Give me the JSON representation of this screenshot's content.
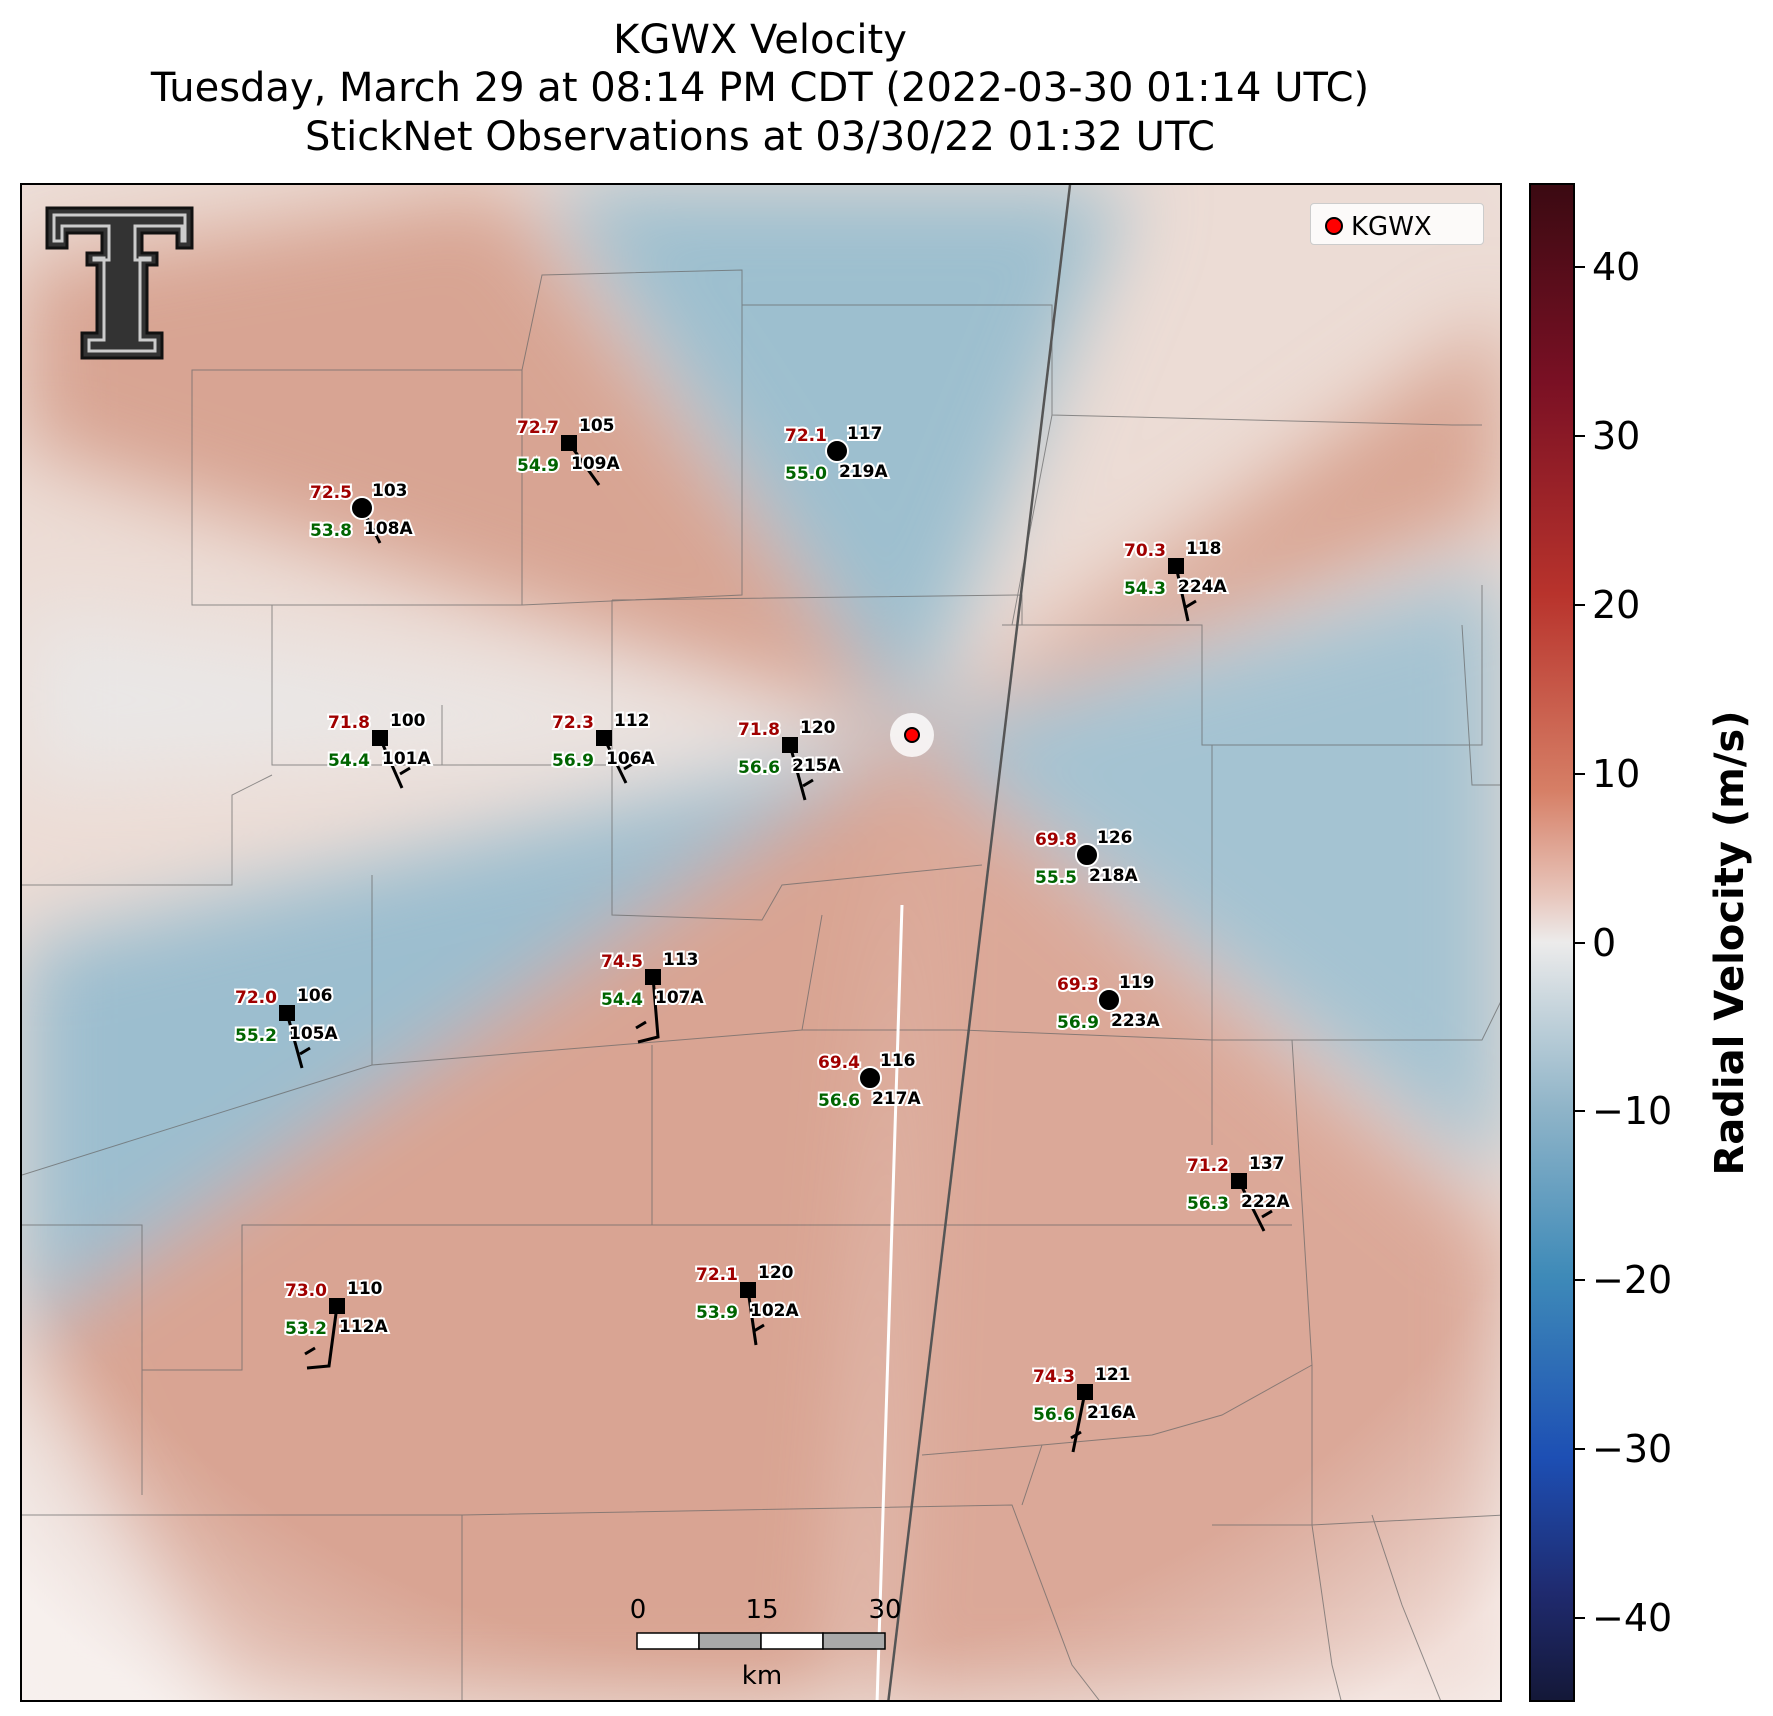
{
  "title": {
    "line1": "KGWX Velocity",
    "line2": "Tuesday, March 29 at 08:14 PM CDT (2022-03-30 01:14 UTC)",
    "line3": "StickNet Observations at 03/30/22 01:32 UTC"
  },
  "legend": {
    "label": "KGWX",
    "marker_color": "#ff0000"
  },
  "colorbar": {
    "label": "Radial Velocity (m/s)",
    "ticks": [
      "40",
      "30",
      "20",
      "10",
      "0",
      "−10",
      "−20",
      "−30",
      "−40"
    ],
    "range": [
      -45,
      45
    ]
  },
  "scale_bar": {
    "ticks": [
      "0",
      "15",
      "30"
    ],
    "unit": "km"
  },
  "colors": {
    "outbound": "#d9a08f",
    "inbound": "#9fbfce",
    "neutral": "#ecebeb",
    "temperature": "#a00000",
    "dewpoint": "#006400"
  },
  "stations": [
    {
      "id": "108A",
      "num": "103",
      "temp": "72.5",
      "dew": "53.8",
      "marker": "circle"
    },
    {
      "id": "109A",
      "num": "105",
      "temp": "72.7",
      "dew": "54.9",
      "marker": "square"
    },
    {
      "id": "219A",
      "num": "117",
      "temp": "72.1",
      "dew": "55.0",
      "marker": "circle"
    },
    {
      "id": "224A",
      "num": "118",
      "temp": "70.3",
      "dew": "54.3",
      "marker": "square"
    },
    {
      "id": "101A",
      "num": "100",
      "temp": "71.8",
      "dew": "54.4",
      "marker": "square"
    },
    {
      "id": "106A",
      "num": "112",
      "temp": "72.3",
      "dew": "56.9",
      "marker": "square"
    },
    {
      "id": "215A",
      "num": "120",
      "temp": "71.8",
      "dew": "56.6",
      "marker": "square"
    },
    {
      "id": "218A",
      "num": "126",
      "temp": "69.8",
      "dew": "55.5",
      "marker": "circle"
    },
    {
      "id": "107A",
      "num": "113",
      "temp": "74.5",
      "dew": "54.4",
      "marker": "square"
    },
    {
      "id": "223A",
      "num": "119",
      "temp": "69.3",
      "dew": "56.9",
      "marker": "circle"
    },
    {
      "id": "105A",
      "num": "106",
      "temp": "72.0",
      "dew": "55.2",
      "marker": "square"
    },
    {
      "id": "217A",
      "num": "116",
      "temp": "69.4",
      "dew": "56.6",
      "marker": "circle"
    },
    {
      "id": "222A",
      "num": "137",
      "temp": "71.2",
      "dew": "56.3",
      "marker": "square"
    },
    {
      "id": "112A",
      "num": "110",
      "temp": "73.0",
      "dew": "53.2",
      "marker": "square"
    },
    {
      "id": "102A",
      "num": "120",
      "temp": "72.1",
      "dew": "53.9",
      "marker": "square"
    },
    {
      "id": "216A",
      "num": "121",
      "temp": "74.3",
      "dew": "56.6",
      "marker": "square"
    }
  ]
}
